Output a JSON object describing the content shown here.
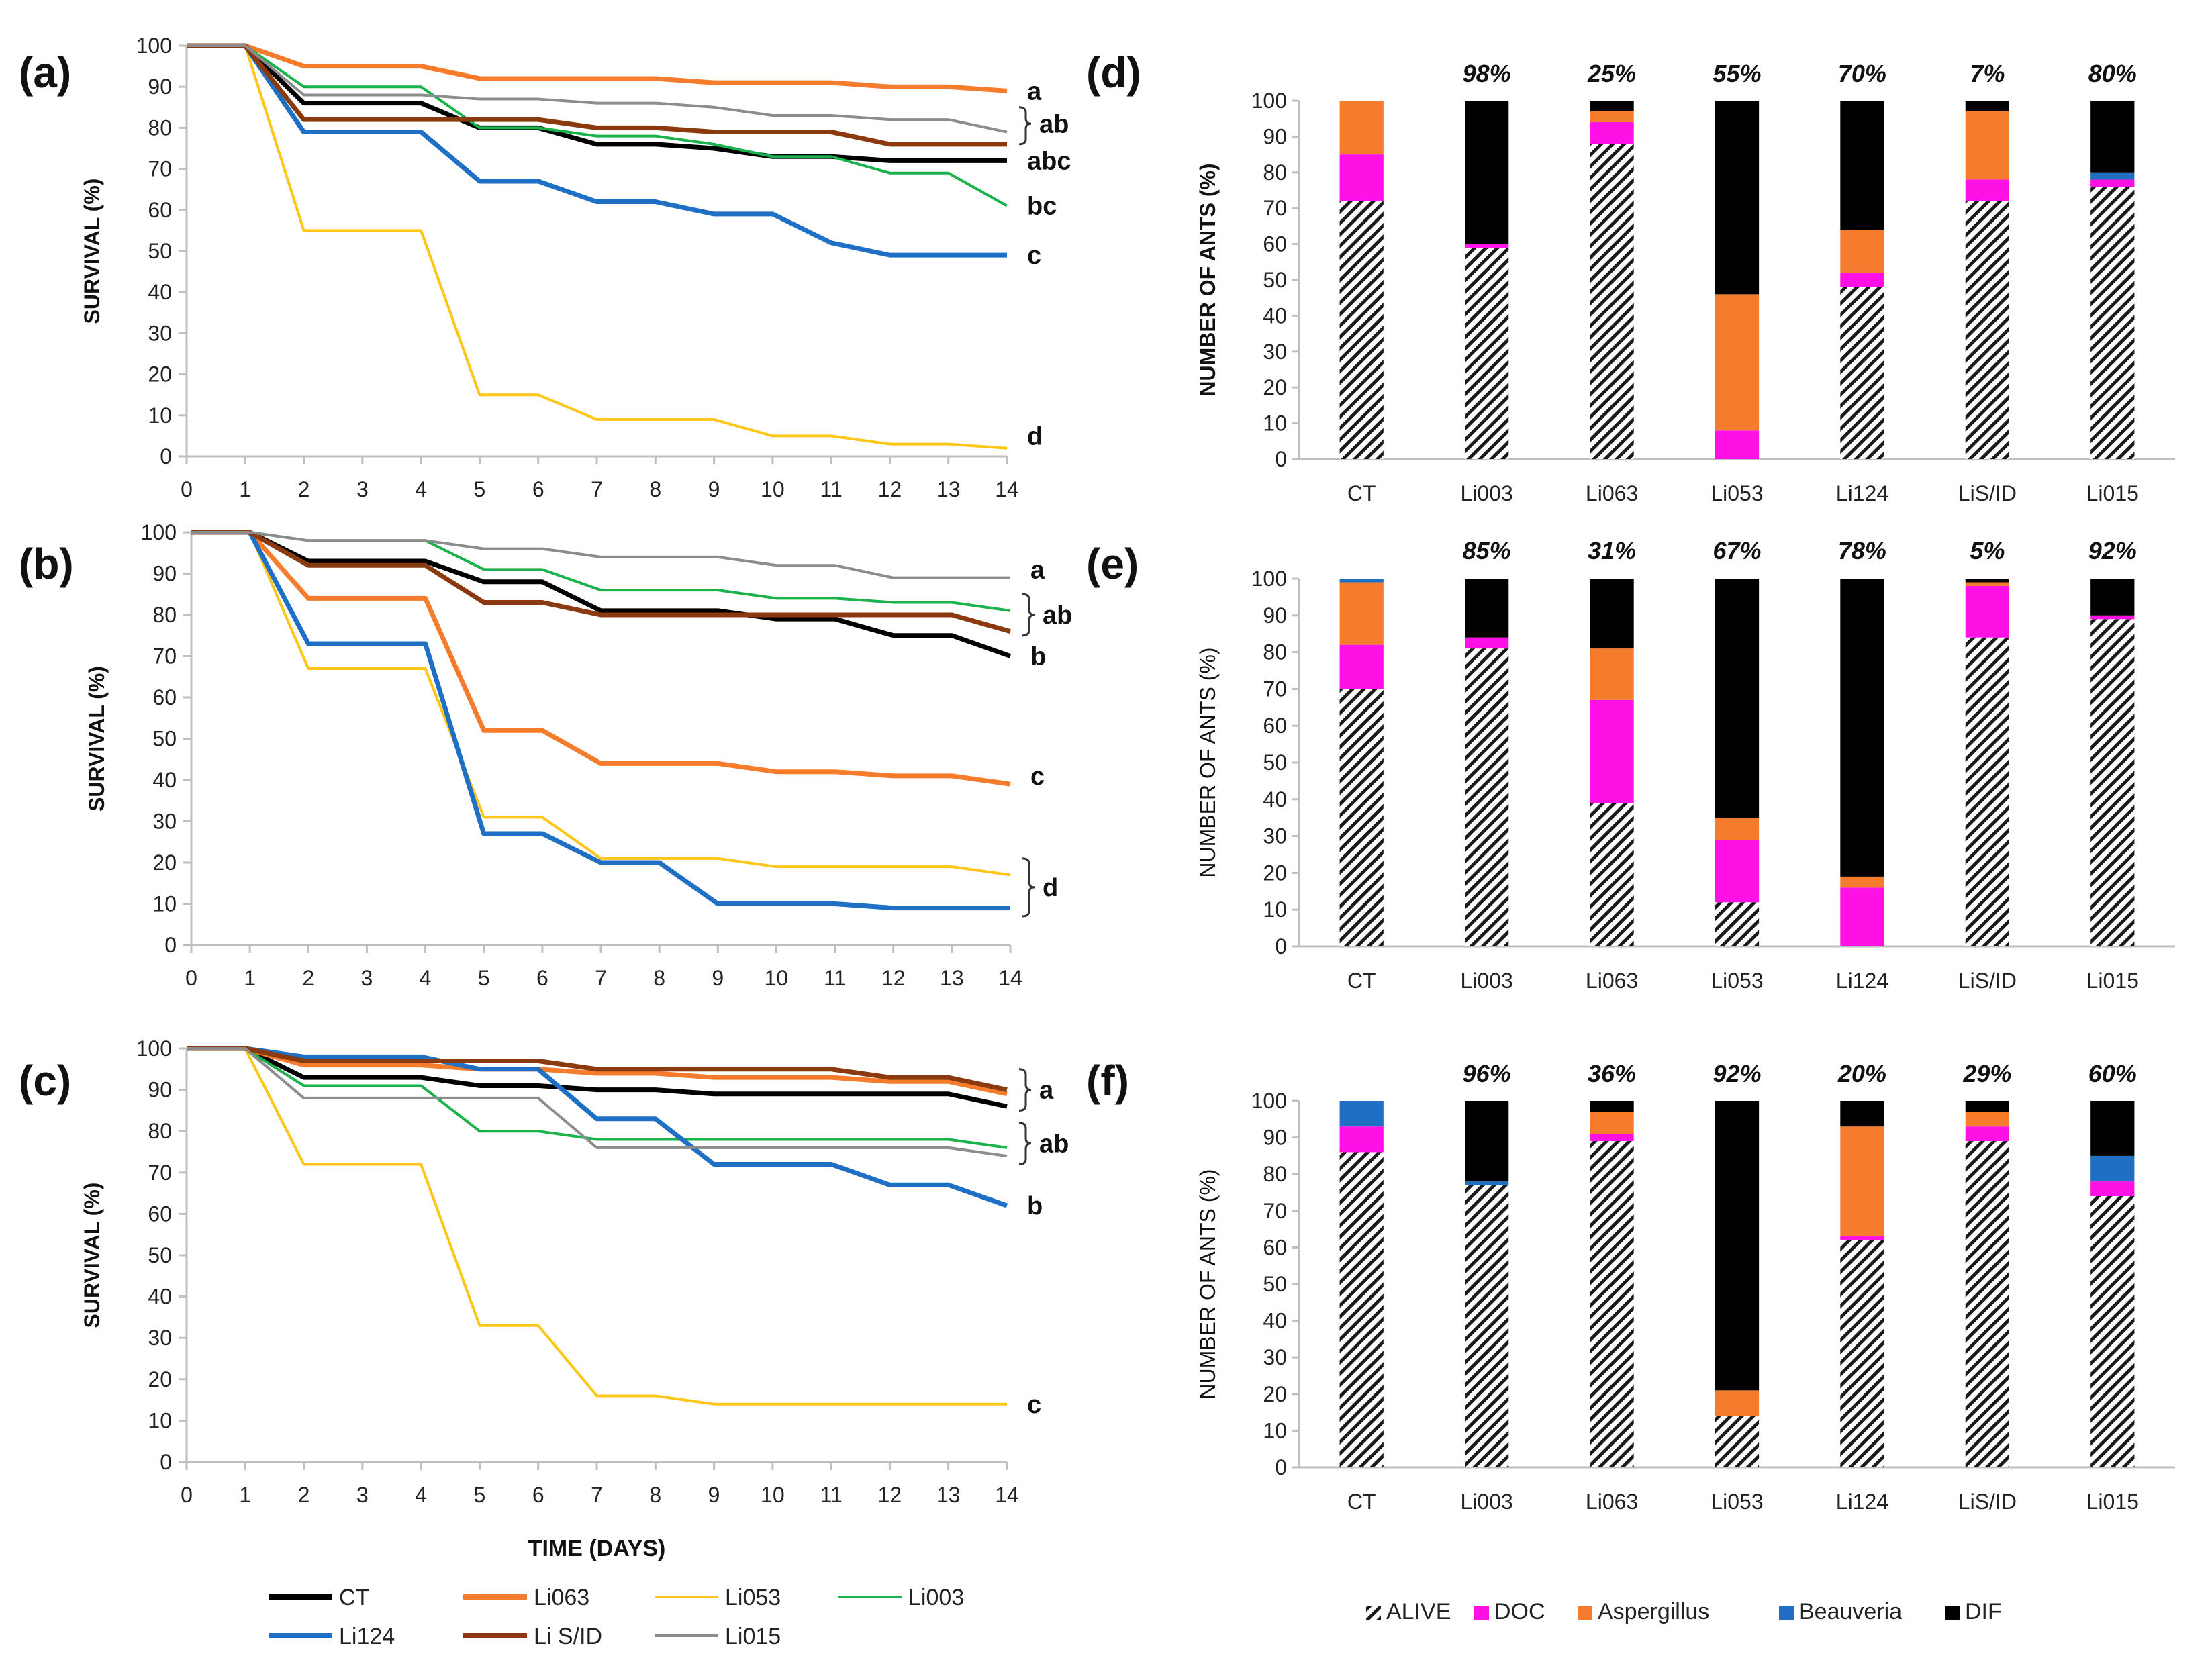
{
  "chart_data": [
    {
      "id": "a",
      "type": "line",
      "panel_label": "(a)",
      "xlabel": "",
      "ylabel": "SURVIVAL (%)",
      "xlim": [
        0,
        14
      ],
      "ylim": [
        0,
        100
      ],
      "x_ticks": [
        "0",
        "1",
        "2",
        "3",
        "4",
        "5",
        "6",
        "7",
        "8",
        "9",
        "10",
        "11",
        "12",
        "13",
        "14"
      ],
      "y_ticks": [
        "0",
        "10",
        "20",
        "30",
        "40",
        "50",
        "60",
        "70",
        "80",
        "90",
        "100"
      ],
      "x": [
        0,
        1,
        2,
        3,
        4,
        5,
        6,
        7,
        8,
        9,
        10,
        11,
        12,
        13,
        14
      ],
      "series": [
        {
          "name": "CT",
          "values": [
            100,
            100,
            86,
            86,
            86,
            80,
            80,
            76,
            76,
            75,
            73,
            73,
            72,
            72,
            72
          ]
        },
        {
          "name": "Li063",
          "values": [
            100,
            100,
            95,
            95,
            95,
            92,
            92,
            92,
            92,
            91,
            91,
            91,
            90,
            90,
            89
          ]
        },
        {
          "name": "Li053",
          "values": [
            100,
            100,
            55,
            55,
            55,
            15,
            15,
            9,
            9,
            9,
            5,
            5,
            3,
            3,
            2
          ]
        },
        {
          "name": "Li003",
          "values": [
            100,
            100,
            90,
            90,
            90,
            80,
            80,
            78,
            78,
            76,
            73,
            73,
            69,
            69,
            61
          ]
        },
        {
          "name": "Li124",
          "values": [
            100,
            100,
            79,
            79,
            79,
            67,
            67,
            62,
            62,
            59,
            59,
            52,
            49,
            49,
            49
          ]
        },
        {
          "name": "Li S/ID",
          "values": [
            100,
            100,
            82,
            82,
            82,
            82,
            82,
            80,
            80,
            79,
            79,
            79,
            76,
            76,
            76
          ]
        },
        {
          "name": "Li015",
          "values": [
            100,
            100,
            88,
            88,
            88,
            87,
            87,
            86,
            86,
            85,
            83,
            83,
            82,
            82,
            79
          ]
        }
      ],
      "group_labels": [
        {
          "text": "a",
          "y": 89
        },
        {
          "text": "ab",
          "y": 81,
          "bracket": [
            76,
            85
          ]
        },
        {
          "text": "abc",
          "y": 72
        },
        {
          "text": "bc",
          "y": 61
        },
        {
          "text": "c",
          "y": 49
        },
        {
          "text": "d",
          "y": 5
        }
      ]
    },
    {
      "id": "b",
      "type": "line",
      "panel_label": "(b)",
      "xlabel": "",
      "ylabel": "SURVIVAL (%)",
      "xlim": [
        0,
        14
      ],
      "ylim": [
        0,
        100
      ],
      "x_ticks": [
        "0",
        "1",
        "2",
        "3",
        "4",
        "5",
        "6",
        "7",
        "8",
        "9",
        "10",
        "11",
        "12",
        "13",
        "14"
      ],
      "y_ticks": [
        "0",
        "10",
        "20",
        "30",
        "40",
        "50",
        "60",
        "70",
        "80",
        "90",
        "100"
      ],
      "x": [
        0,
        1,
        2,
        3,
        4,
        5,
        6,
        7,
        8,
        9,
        10,
        11,
        12,
        13,
        14
      ],
      "series": [
        {
          "name": "CT",
          "values": [
            100,
            100,
            93,
            93,
            93,
            88,
            88,
            81,
            81,
            81,
            79,
            79,
            75,
            75,
            70
          ]
        },
        {
          "name": "Li063",
          "values": [
            100,
            100,
            84,
            84,
            84,
            52,
            52,
            44,
            44,
            44,
            42,
            42,
            41,
            41,
            39
          ]
        },
        {
          "name": "Li053",
          "values": [
            100,
            100,
            67,
            67,
            67,
            31,
            31,
            21,
            21,
            21,
            19,
            19,
            19,
            19,
            17
          ]
        },
        {
          "name": "Li003",
          "values": [
            100,
            100,
            98,
            98,
            98,
            91,
            91,
            86,
            86,
            86,
            84,
            84,
            83,
            83,
            81
          ]
        },
        {
          "name": "Li124",
          "values": [
            100,
            100,
            73,
            73,
            73,
            27,
            27,
            20,
            20,
            10,
            10,
            10,
            9,
            9,
            9
          ]
        },
        {
          "name": "Li S/ID",
          "values": [
            100,
            100,
            92,
            92,
            92,
            83,
            83,
            80,
            80,
            80,
            80,
            80,
            80,
            80,
            76
          ]
        },
        {
          "name": "Li015",
          "values": [
            100,
            100,
            98,
            98,
            98,
            96,
            96,
            94,
            94,
            94,
            92,
            92,
            89,
            89,
            89
          ]
        }
      ],
      "group_labels": [
        {
          "text": "a",
          "y": 91
        },
        {
          "text": "ab",
          "y": 80,
          "bracket": [
            75,
            85
          ]
        },
        {
          "text": "b",
          "y": 70
        },
        {
          "text": "c",
          "y": 41
        },
        {
          "text": "d",
          "y": 14,
          "bracket": [
            7,
            21
          ]
        }
      ]
    },
    {
      "id": "c",
      "type": "line",
      "panel_label": "(c)",
      "xlabel": "TIME (DAYS)",
      "ylabel": "SURVIVAL (%)",
      "xlim": [
        0,
        14
      ],
      "ylim": [
        0,
        100
      ],
      "x_ticks": [
        "0",
        "1",
        "2",
        "3",
        "4",
        "5",
        "6",
        "7",
        "8",
        "9",
        "10",
        "11",
        "12",
        "13",
        "14"
      ],
      "y_ticks": [
        "0",
        "10",
        "20",
        "30",
        "40",
        "50",
        "60",
        "70",
        "80",
        "90",
        "100"
      ],
      "x": [
        0,
        1,
        2,
        3,
        4,
        5,
        6,
        7,
        8,
        9,
        10,
        11,
        12,
        13,
        14
      ],
      "series": [
        {
          "name": "CT",
          "values": [
            100,
            100,
            93,
            93,
            93,
            91,
            91,
            90,
            90,
            89,
            89,
            89,
            89,
            89,
            86
          ]
        },
        {
          "name": "Li063",
          "values": [
            100,
            100,
            96,
            96,
            96,
            95,
            95,
            94,
            94,
            93,
            93,
            93,
            92,
            92,
            89
          ]
        },
        {
          "name": "Li053",
          "values": [
            100,
            100,
            72,
            72,
            72,
            33,
            33,
            16,
            16,
            14,
            14,
            14,
            14,
            14,
            14
          ]
        },
        {
          "name": "Li003",
          "values": [
            100,
            100,
            91,
            91,
            91,
            80,
            80,
            78,
            78,
            78,
            78,
            78,
            78,
            78,
            76
          ]
        },
        {
          "name": "Li124",
          "values": [
            100,
            100,
            98,
            98,
            98,
            95,
            95,
            83,
            83,
            72,
            72,
            72,
            67,
            67,
            62
          ]
        },
        {
          "name": "Li S/ID",
          "values": [
            100,
            100,
            97,
            97,
            97,
            97,
            97,
            95,
            95,
            95,
            95,
            95,
            93,
            93,
            90
          ]
        },
        {
          "name": "Li015",
          "values": [
            100,
            100,
            88,
            88,
            88,
            88,
            88,
            76,
            76,
            76,
            76,
            76,
            76,
            76,
            74
          ]
        }
      ],
      "group_labels": [
        {
          "text": "a",
          "y": 90,
          "bracket": [
            85,
            95
          ]
        },
        {
          "text": "ab",
          "y": 77,
          "bracket": [
            72,
            82
          ]
        },
        {
          "text": "b",
          "y": 62
        },
        {
          "text": "c",
          "y": 14
        }
      ]
    },
    {
      "id": "d",
      "type": "bar",
      "stacked": true,
      "panel_label": "(d)",
      "ylabel": "NUMBER OF ANTS (%)",
      "ylim": [
        0,
        100
      ],
      "y_ticks": [
        "0",
        "10",
        "20",
        "30",
        "40",
        "50",
        "60",
        "70",
        "80",
        "90",
        "100"
      ],
      "categories": [
        "CT",
        "Li003",
        "Li063",
        "Li053",
        "Li124",
        "LiS/ID",
        "Li015"
      ],
      "top_labels": [
        "",
        "98%",
        "25%",
        "55%",
        "70%",
        "7%",
        "80%"
      ],
      "series": [
        {
          "name": "ALIVE",
          "values": [
            72,
            59,
            88,
            0,
            48,
            72,
            76
          ]
        },
        {
          "name": "DOC",
          "values": [
            13,
            1,
            6,
            8,
            4,
            6,
            2
          ]
        },
        {
          "name": "Aspergillus",
          "values": [
            15,
            0,
            3,
            38,
            12,
            19,
            0
          ]
        },
        {
          "name": "Beauveria",
          "values": [
            0,
            0,
            0,
            0,
            0,
            0,
            2
          ]
        },
        {
          "name": "DIF",
          "values": [
            0,
            40,
            3,
            54,
            36,
            3,
            20
          ]
        }
      ]
    },
    {
      "id": "e",
      "type": "bar",
      "stacked": true,
      "panel_label": "(e)",
      "ylabel": "NUMBER OF ANTS (%)",
      "ylim": [
        0,
        100
      ],
      "y_ticks": [
        "0",
        "10",
        "20",
        "30",
        "40",
        "50",
        "60",
        "70",
        "80",
        "90",
        "100"
      ],
      "categories": [
        "CT",
        "Li003",
        "Li063",
        "Li053",
        "Li124",
        "LiS/ID",
        "Li015"
      ],
      "top_labels": [
        "",
        "85%",
        "31%",
        "67%",
        "78%",
        "5%",
        "92%"
      ],
      "series": [
        {
          "name": "ALIVE",
          "values": [
            70,
            81,
            39,
            12,
            0,
            84,
            89
          ]
        },
        {
          "name": "DOC",
          "values": [
            12,
            3,
            28,
            17,
            16,
            14,
            1
          ]
        },
        {
          "name": "Aspergillus",
          "values": [
            17,
            0,
            14,
            6,
            3,
            1,
            0
          ]
        },
        {
          "name": "Beauveria",
          "values": [
            1,
            0,
            0,
            0,
            0,
            0,
            0
          ]
        },
        {
          "name": "DIF",
          "values": [
            0,
            16,
            19,
            65,
            81,
            1,
            10
          ]
        }
      ]
    },
    {
      "id": "f",
      "type": "bar",
      "stacked": true,
      "panel_label": "(f)",
      "ylabel": "NUMBER OF ANTS (%)",
      "ylim": [
        0,
        100
      ],
      "y_ticks": [
        "0",
        "10",
        "20",
        "30",
        "40",
        "50",
        "60",
        "70",
        "80",
        "90",
        "100"
      ],
      "categories": [
        "CT",
        "Li003",
        "Li063",
        "Li053",
        "Li124",
        "LiS/ID",
        "Li015"
      ],
      "top_labels": [
        "",
        "96%",
        "36%",
        "92%",
        "20%",
        "29%",
        "60%"
      ],
      "series": [
        {
          "name": "ALIVE",
          "values": [
            86,
            77,
            89,
            14,
            62,
            89,
            74
          ]
        },
        {
          "name": "DOC",
          "values": [
            7,
            0,
            2,
            0,
            1,
            4,
            4
          ]
        },
        {
          "name": "Aspergillus",
          "values": [
            0,
            0,
            6,
            7,
            30,
            4,
            0
          ]
        },
        {
          "name": "Beauveria",
          "values": [
            7,
            1,
            0,
            0,
            0,
            0,
            7
          ]
        },
        {
          "name": "DIF",
          "values": [
            0,
            22,
            3,
            79,
            7,
            3,
            15
          ]
        }
      ]
    }
  ],
  "line_legend": [
    {
      "name": "CT",
      "color": "#000000"
    },
    {
      "name": "Li063",
      "color": "#f47c2c"
    },
    {
      "name": "Li053",
      "color": "#ffc61a"
    },
    {
      "name": "Li003",
      "color": "#19b24b"
    },
    {
      "name": "Li124",
      "color": "#1f6fc4"
    },
    {
      "name": "Li S/ID",
      "color": "#8b3a0f"
    },
    {
      "name": "Li015",
      "color": "#8c8c8c"
    }
  ],
  "bar_legend": [
    {
      "name": "ALIVE",
      "color": "hatch"
    },
    {
      "name": "DOC",
      "color": "#ff10e4"
    },
    {
      "name": "Aspergillus",
      "color": "#f47c2c"
    },
    {
      "name": "Beauveria",
      "color": "#1f6fc4"
    },
    {
      "name": "DIF",
      "color": "#000000"
    }
  ],
  "colors": {
    "axis": "#bfbfbf",
    "text": "#222222"
  }
}
